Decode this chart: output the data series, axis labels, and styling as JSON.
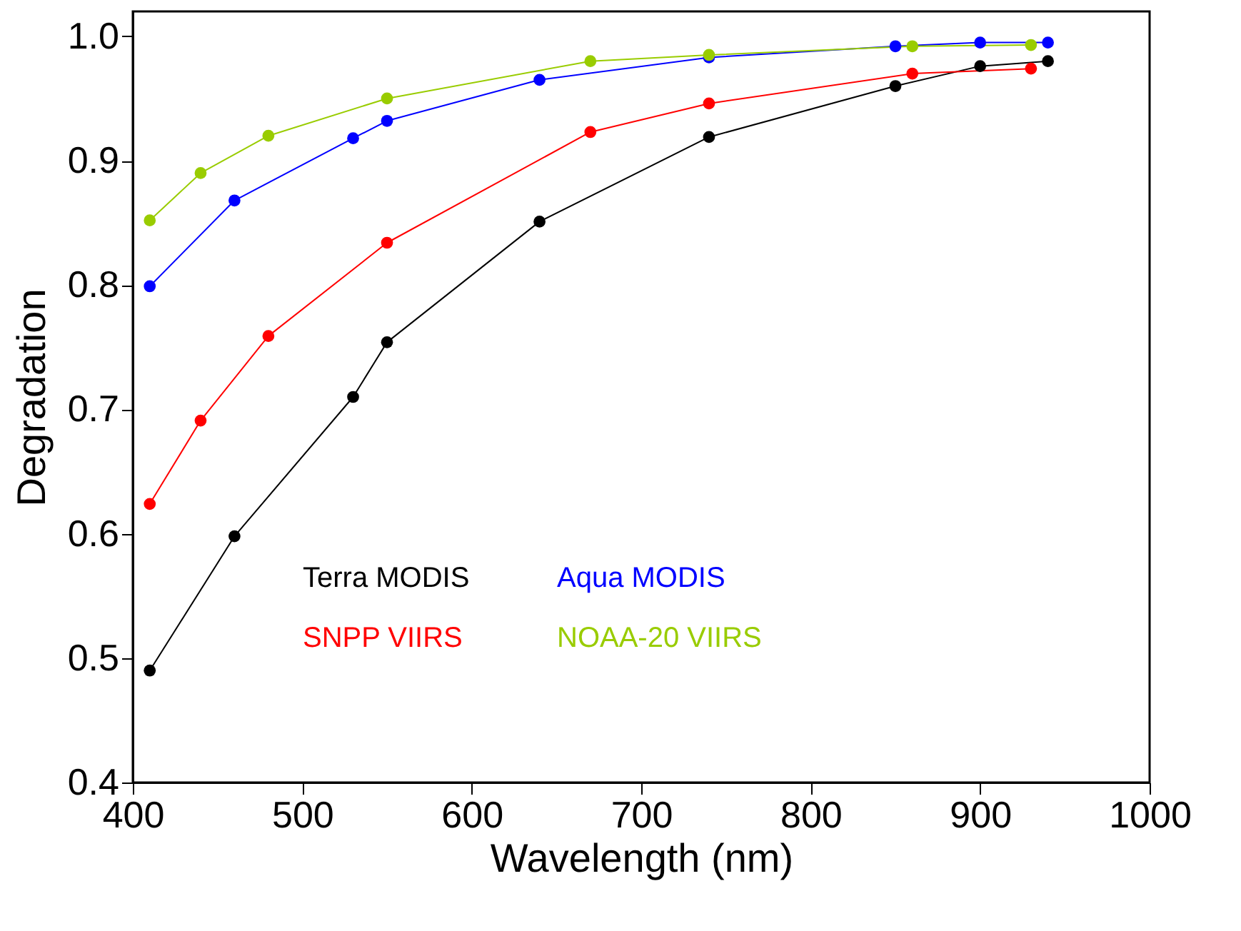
{
  "chart_data": {
    "type": "line",
    "xlabel": "Wavelength (nm)",
    "ylabel": "Degradation",
    "xlim": [
      400,
      1000
    ],
    "xticks": [
      400,
      500,
      600,
      700,
      800,
      900,
      1000
    ],
    "ylim": [
      0.4,
      1.02
    ],
    "yticks": [
      0.4,
      0.5,
      0.6,
      0.7,
      0.8,
      0.9,
      {
        "value": 1.0,
        "label": "1.0"
      }
    ],
    "grid": false,
    "legend": "bottom left",
    "marker": "circle",
    "line_style": "solid",
    "series": [
      {
        "name": "Terra MODIS",
        "color": "#000000",
        "x": [
          410,
          460,
          530,
          550,
          640,
          740,
          850,
          900,
          940
        ],
        "values": [
          0.49,
          0.598,
          0.71,
          0.754,
          0.851,
          0.919,
          0.96,
          0.976,
          0.98
        ]
      },
      {
        "name": "Aqua MODIS",
        "color": "#0000ff",
        "x": [
          410,
          460,
          530,
          550,
          640,
          740,
          850,
          900,
          940
        ],
        "values": [
          0.799,
          0.868,
          0.918,
          0.932,
          0.965,
          0.983,
          0.992,
          0.995,
          0.995
        ]
      },
      {
        "name": "SNPP VIIRS",
        "color": "#ff0000",
        "x": [
          410,
          440,
          480,
          550,
          670,
          740,
          860,
          930
        ],
        "values": [
          0.624,
          0.691,
          0.759,
          0.834,
          0.923,
          0.946,
          0.97,
          0.974
        ]
      },
      {
        "name": "NOAA-20 VIIRS",
        "color": "#99cc00",
        "x": [
          410,
          440,
          480,
          550,
          670,
          740,
          860,
          930
        ],
        "values": [
          0.852,
          0.89,
          0.92,
          0.95,
          0.98,
          0.985,
          0.992,
          0.993
        ]
      }
    ]
  }
}
